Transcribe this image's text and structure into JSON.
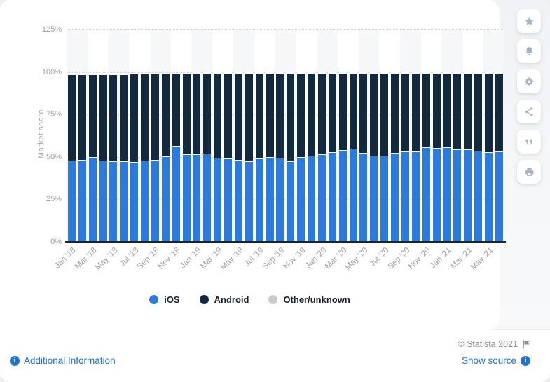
{
  "chart_data": {
    "type": "bar",
    "stacked": true,
    "title": "",
    "ylabel": "Market share",
    "y_ticks": [
      "0%",
      "25%",
      "50%",
      "75%",
      "100%",
      "125%"
    ],
    "ylim": [
      0,
      125
    ],
    "grid": "dotted horizontal lines, alternating light vertical bands",
    "legend_position": "bottom",
    "months": [
      "Jan '18",
      "Feb '18",
      "Mar '18",
      "Apr '18",
      "May '18",
      "Jun '18",
      "Jul '18",
      "Aug '18",
      "Sep '18",
      "Oct '18",
      "Nov '18",
      "Dec '18",
      "Jan '19",
      "Feb '19",
      "Mar '19",
      "Apr '19",
      "May '19",
      "Jun '19",
      "Jul '19",
      "Aug '19",
      "Sep '19",
      "Oct '19",
      "Nov '19",
      "Dec '19",
      "Jan '20",
      "Feb '20",
      "Mar '20",
      "Apr '20",
      "May '20",
      "Jun '20",
      "Jul '20",
      "Aug '20",
      "Sep '20",
      "Oct '20",
      "Nov '20",
      "Dec '20",
      "Jan '21",
      "Feb '21",
      "Mar '21",
      "Apr '21",
      "May '21",
      "Jun '21"
    ],
    "x_axis_labels_shown": [
      "Jan '18",
      "Mar '18",
      "May '18",
      "Jul '18",
      "Sep '18",
      "Nov '18",
      "Jan '19",
      "Mar '19",
      "May '19",
      "Jul '19",
      "Sep '19",
      "Nov '19",
      "Jan '20",
      "Mar '20",
      "May '20",
      "Jul '20",
      "Sep '20",
      "Nov '20",
      "Jan '21",
      "Mar '21",
      "May '21"
    ],
    "series": [
      {
        "name": "iOS",
        "color": "#2c7ade",
        "values": [
          48.3,
          48.7,
          50.2,
          48.3,
          48.0,
          47.7,
          47.4,
          48.5,
          48.7,
          50.8,
          56.6,
          52.2,
          52.2,
          52.5,
          50.0,
          49.7,
          48.7,
          47.9,
          49.7,
          50.4,
          50.0,
          47.8,
          50.2,
          51.1,
          52.2,
          53.2,
          54.5,
          55.2,
          52.8,
          51.1,
          51.4,
          52.8,
          53.6,
          53.6,
          56.0,
          55.7,
          56.3,
          54.9,
          54.9,
          54.2,
          53.4,
          53.8
        ]
      },
      {
        "name": "Android",
        "color": "#13293e",
        "values": [
          50.7,
          50.3,
          48.8,
          50.7,
          51.0,
          51.3,
          52.2,
          51.1,
          50.9,
          48.8,
          43.0,
          47.4,
          47.6,
          47.3,
          49.8,
          50.1,
          51.1,
          51.9,
          50.1,
          49.4,
          49.8,
          52.0,
          49.6,
          48.7,
          47.6,
          46.6,
          45.3,
          44.6,
          47.0,
          48.7,
          48.4,
          47.0,
          46.2,
          46.2,
          43.8,
          44.1,
          43.5,
          44.9,
          44.9,
          45.6,
          46.4,
          46.0
        ]
      },
      {
        "name": "Other/unknown",
        "color": "#c8cbcd",
        "values": [
          1.0,
          1.0,
          1.0,
          1.0,
          1.0,
          1.0,
          0.4,
          0.4,
          0.4,
          0.4,
          0.4,
          0.4,
          0.2,
          0.2,
          0.2,
          0.2,
          0.2,
          0.2,
          0.2,
          0.2,
          0.2,
          0.2,
          0.2,
          0.2,
          0.2,
          0.2,
          0.2,
          0.2,
          0.2,
          0.2,
          0.2,
          0.2,
          0.2,
          0.2,
          0.2,
          0.2,
          0.2,
          0.2,
          0.2,
          0.2,
          0.2,
          0.2
        ]
      }
    ]
  },
  "sidebar": {
    "icons": [
      "star",
      "bell",
      "gear",
      "share",
      "quote",
      "print"
    ]
  },
  "footer": {
    "copyright": "© Statista 2021",
    "additional_info_label": "Additional Information",
    "show_source_label": "Show source"
  },
  "colors": {
    "link_blue": "#2173d0",
    "copyright_gray": "#8b9096",
    "axis_text_gray": "#9aa0a6",
    "baseline_dark": "#1a2634"
  }
}
